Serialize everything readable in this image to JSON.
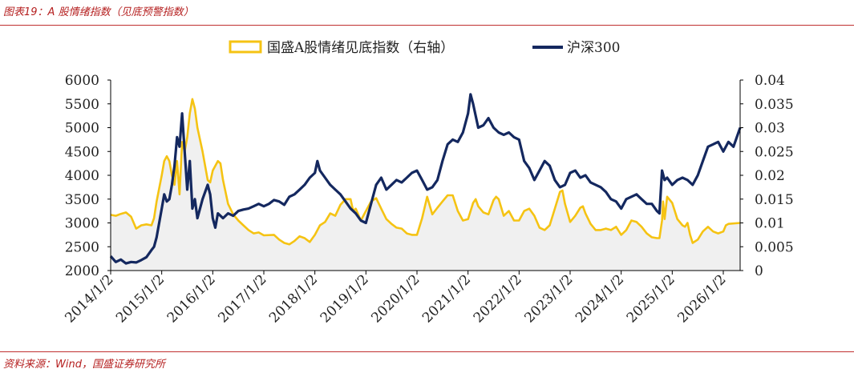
{
  "figure_title": "图表19：A 股情绪指数（见底预警指数）",
  "source_note": "资料来源：Wind，国盛证券研究所",
  "colors": {
    "sentiment": "#f5c313",
    "csi300": "#14285f",
    "fill": "#f0f0f0",
    "accent": "#b52020"
  },
  "chart_data": {
    "type": "line",
    "legend_position": "top",
    "grid": false,
    "x_tick_labels": [
      "2014/1/2",
      "2015/1/2",
      "2016/1/2",
      "2017/1/2",
      "2018/1/2",
      "2019/1/2",
      "2020/1/2",
      "2021/1/2",
      "2022/1/2",
      "2023/1/2",
      "2024/1/2",
      "2025/1/2",
      "2026/1/2"
    ],
    "x_range": [
      2014.0,
      2026.33
    ],
    "y_left": {
      "range": [
        2000,
        6000
      ],
      "ticks": [
        "2000",
        "2500",
        "3000",
        "3500",
        "4000",
        "4500",
        "5000",
        "5500",
        "6000"
      ]
    },
    "y_right": {
      "range": [
        0,
        0.04
      ],
      "ticks": [
        "0",
        "0.005",
        "0.01",
        "0.015",
        "0.02",
        "0.025",
        "0.03",
        "0.035",
        "0.04"
      ]
    },
    "series": [
      {
        "name": "国盛A股情绪见底指数（右轴）",
        "axis": "right",
        "type": "area-line",
        "points": [
          [
            2014.0,
            0.0117
          ],
          [
            2014.1,
            0.0115
          ],
          [
            2014.2,
            0.0119
          ],
          [
            2014.3,
            0.0122
          ],
          [
            2014.4,
            0.0113
          ],
          [
            2014.5,
            0.0088
          ],
          [
            2014.6,
            0.0095
          ],
          [
            2014.7,
            0.0097
          ],
          [
            2014.8,
            0.0095
          ],
          [
            2014.85,
            0.011
          ],
          [
            2014.9,
            0.0145
          ],
          [
            2015.0,
            0.02
          ],
          [
            2015.05,
            0.023
          ],
          [
            2015.1,
            0.024
          ],
          [
            2015.15,
            0.023
          ],
          [
            2015.2,
            0.02
          ],
          [
            2015.25,
            0.018
          ],
          [
            2015.3,
            0.023
          ],
          [
            2015.35,
            0.016
          ],
          [
            2015.4,
            0.027
          ],
          [
            2015.45,
            0.025
          ],
          [
            2015.5,
            0.028
          ],
          [
            2015.55,
            0.033
          ],
          [
            2015.6,
            0.036
          ],
          [
            2015.65,
            0.034
          ],
          [
            2015.7,
            0.03
          ],
          [
            2015.8,
            0.025
          ],
          [
            2015.9,
            0.019
          ],
          [
            2015.95,
            0.0185
          ],
          [
            2016.0,
            0.021
          ],
          [
            2016.1,
            0.023
          ],
          [
            2016.15,
            0.0225
          ],
          [
            2016.2,
            0.019
          ],
          [
            2016.3,
            0.014
          ],
          [
            2016.4,
            0.0118
          ],
          [
            2016.5,
            0.0105
          ],
          [
            2016.6,
            0.0095
          ],
          [
            2016.7,
            0.0085
          ],
          [
            2016.8,
            0.0078
          ],
          [
            2016.9,
            0.008
          ],
          [
            2017.0,
            0.0074
          ],
          [
            2017.2,
            0.0075
          ],
          [
            2017.3,
            0.0065
          ],
          [
            2017.4,
            0.0058
          ],
          [
            2017.5,
            0.0055
          ],
          [
            2017.6,
            0.0062
          ],
          [
            2017.7,
            0.0072
          ],
          [
            2017.8,
            0.0068
          ],
          [
            2017.9,
            0.006
          ],
          [
            2018.0,
            0.0075
          ],
          [
            2018.1,
            0.0095
          ],
          [
            2018.2,
            0.0102
          ],
          [
            2018.3,
            0.012
          ],
          [
            2018.4,
            0.0115
          ],
          [
            2018.5,
            0.0138
          ],
          [
            2018.6,
            0.015
          ],
          [
            2018.7,
            0.015
          ],
          [
            2018.75,
            0.0125
          ],
          [
            2018.8,
            0.013
          ],
          [
            2018.9,
            0.0105
          ],
          [
            2019.0,
            0.0125
          ],
          [
            2019.1,
            0.0145
          ],
          [
            2019.2,
            0.0152
          ],
          [
            2019.3,
            0.013
          ],
          [
            2019.4,
            0.0108
          ],
          [
            2019.5,
            0.0098
          ],
          [
            2019.6,
            0.009
          ],
          [
            2019.7,
            0.0088
          ],
          [
            2019.8,
            0.0078
          ],
          [
            2019.9,
            0.0075
          ],
          [
            2020.0,
            0.0075
          ],
          [
            2020.1,
            0.011
          ],
          [
            2020.2,
            0.0155
          ],
          [
            2020.3,
            0.0118
          ],
          [
            2020.4,
            0.0132
          ],
          [
            2020.5,
            0.0145
          ],
          [
            2020.6,
            0.0158
          ],
          [
            2020.7,
            0.0158
          ],
          [
            2020.8,
            0.0125
          ],
          [
            2020.9,
            0.0105
          ],
          [
            2021.0,
            0.0108
          ],
          [
            2021.1,
            0.0142
          ],
          [
            2021.15,
            0.015
          ],
          [
            2021.2,
            0.0135
          ],
          [
            2021.3,
            0.0122
          ],
          [
            2021.4,
            0.0118
          ],
          [
            2021.5,
            0.0148
          ],
          [
            2021.55,
            0.0155
          ],
          [
            2021.6,
            0.015
          ],
          [
            2021.7,
            0.0115
          ],
          [
            2021.8,
            0.0125
          ],
          [
            2021.9,
            0.0105
          ],
          [
            2022.0,
            0.0105
          ],
          [
            2022.1,
            0.0125
          ],
          [
            2022.2,
            0.013
          ],
          [
            2022.3,
            0.0115
          ],
          [
            2022.4,
            0.009
          ],
          [
            2022.5,
            0.0085
          ],
          [
            2022.6,
            0.0095
          ],
          [
            2022.7,
            0.013
          ],
          [
            2022.8,
            0.0165
          ],
          [
            2022.85,
            0.0168
          ],
          [
            2022.9,
            0.014
          ],
          [
            2023.0,
            0.0102
          ],
          [
            2023.1,
            0.0115
          ],
          [
            2023.2,
            0.0132
          ],
          [
            2023.25,
            0.0135
          ],
          [
            2023.3,
            0.012
          ],
          [
            2023.4,
            0.0098
          ],
          [
            2023.5,
            0.0085
          ],
          [
            2023.6,
            0.0085
          ],
          [
            2023.7,
            0.0088
          ],
          [
            2023.8,
            0.0085
          ],
          [
            2023.9,
            0.0092
          ],
          [
            2024.0,
            0.0075
          ],
          [
            2024.1,
            0.0085
          ],
          [
            2024.2,
            0.0105
          ],
          [
            2024.3,
            0.0102
          ],
          [
            2024.4,
            0.0092
          ],
          [
            2024.5,
            0.0078
          ],
          [
            2024.6,
            0.007
          ],
          [
            2024.7,
            0.0068
          ],
          [
            2024.75,
            0.0068
          ],
          [
            2024.8,
            0.0105
          ],
          [
            2024.82,
            0.0145
          ],
          [
            2024.85,
            0.0108
          ],
          [
            2024.9,
            0.0155
          ],
          [
            2025.0,
            0.0142
          ],
          [
            2025.1,
            0.0108
          ],
          [
            2025.2,
            0.0095
          ],
          [
            2025.25,
            0.0092
          ],
          [
            2025.3,
            0.01
          ],
          [
            2025.35,
            0.0075
          ],
          [
            2025.4,
            0.0058
          ],
          [
            2025.5,
            0.0065
          ],
          [
            2025.6,
            0.0082
          ],
          [
            2025.7,
            0.0092
          ],
          [
            2025.8,
            0.0082
          ],
          [
            2025.9,
            0.0078
          ],
          [
            2026.0,
            0.0082
          ],
          [
            2026.05,
            0.0095
          ],
          [
            2026.1,
            0.0098
          ],
          [
            2026.33,
            0.01
          ]
        ]
      },
      {
        "name": "沪深300",
        "axis": "left",
        "type": "line",
        "points": [
          [
            2014.0,
            2300
          ],
          [
            2014.1,
            2180
          ],
          [
            2014.2,
            2230
          ],
          [
            2014.3,
            2150
          ],
          [
            2014.4,
            2180
          ],
          [
            2014.5,
            2170
          ],
          [
            2014.6,
            2220
          ],
          [
            2014.7,
            2280
          ],
          [
            2014.8,
            2430
          ],
          [
            2014.85,
            2500
          ],
          [
            2014.9,
            2700
          ],
          [
            2015.0,
            3300
          ],
          [
            2015.05,
            3600
          ],
          [
            2015.1,
            3450
          ],
          [
            2015.15,
            3500
          ],
          [
            2015.2,
            3800
          ],
          [
            2015.25,
            4200
          ],
          [
            2015.3,
            4800
          ],
          [
            2015.35,
            4600
          ],
          [
            2015.4,
            5300
          ],
          [
            2015.45,
            4500
          ],
          [
            2015.5,
            3700
          ],
          [
            2015.55,
            4300
          ],
          [
            2015.6,
            3300
          ],
          [
            2015.65,
            3500
          ],
          [
            2015.7,
            3100
          ],
          [
            2015.8,
            3500
          ],
          [
            2015.9,
            3800
          ],
          [
            2015.95,
            3600
          ],
          [
            2016.0,
            3100
          ],
          [
            2016.05,
            2900
          ],
          [
            2016.1,
            3200
          ],
          [
            2016.2,
            3100
          ],
          [
            2016.3,
            3200
          ],
          [
            2016.4,
            3150
          ],
          [
            2016.5,
            3250
          ],
          [
            2016.6,
            3280
          ],
          [
            2016.7,
            3300
          ],
          [
            2016.8,
            3350
          ],
          [
            2016.9,
            3400
          ],
          [
            2017.0,
            3350
          ],
          [
            2017.1,
            3400
          ],
          [
            2017.2,
            3480
          ],
          [
            2017.3,
            3450
          ],
          [
            2017.4,
            3380
          ],
          [
            2017.5,
            3550
          ],
          [
            2017.6,
            3600
          ],
          [
            2017.7,
            3700
          ],
          [
            2017.8,
            3800
          ],
          [
            2017.9,
            3950
          ],
          [
            2018.0,
            4050
          ],
          [
            2018.05,
            4300
          ],
          [
            2018.1,
            4100
          ],
          [
            2018.2,
            3950
          ],
          [
            2018.3,
            3800
          ],
          [
            2018.4,
            3700
          ],
          [
            2018.5,
            3600
          ],
          [
            2018.6,
            3450
          ],
          [
            2018.7,
            3300
          ],
          [
            2018.8,
            3200
          ],
          [
            2018.9,
            3050
          ],
          [
            2019.0,
            3000
          ],
          [
            2019.1,
            3400
          ],
          [
            2019.2,
            3800
          ],
          [
            2019.3,
            3950
          ],
          [
            2019.4,
            3700
          ],
          [
            2019.5,
            3800
          ],
          [
            2019.6,
            3900
          ],
          [
            2019.7,
            3850
          ],
          [
            2019.8,
            3950
          ],
          [
            2019.9,
            4050
          ],
          [
            2020.0,
            4100
          ],
          [
            2020.1,
            3900
          ],
          [
            2020.2,
            3700
          ],
          [
            2020.3,
            3750
          ],
          [
            2020.4,
            3900
          ],
          [
            2020.5,
            4300
          ],
          [
            2020.6,
            4650
          ],
          [
            2020.7,
            4750
          ],
          [
            2020.8,
            4700
          ],
          [
            2020.9,
            4900
          ],
          [
            2021.0,
            5300
          ],
          [
            2021.05,
            5700
          ],
          [
            2021.1,
            5500
          ],
          [
            2021.2,
            5000
          ],
          [
            2021.3,
            5050
          ],
          [
            2021.4,
            5200
          ],
          [
            2021.5,
            5000
          ],
          [
            2021.6,
            4900
          ],
          [
            2021.7,
            4850
          ],
          [
            2021.8,
            4900
          ],
          [
            2021.9,
            4800
          ],
          [
            2022.0,
            4750
          ],
          [
            2022.1,
            4300
          ],
          [
            2022.2,
            4150
          ],
          [
            2022.3,
            3900
          ],
          [
            2022.4,
            4100
          ],
          [
            2022.5,
            4300
          ],
          [
            2022.6,
            4200
          ],
          [
            2022.7,
            3900
          ],
          [
            2022.8,
            3750
          ],
          [
            2022.9,
            3800
          ],
          [
            2023.0,
            4050
          ],
          [
            2023.1,
            4100
          ],
          [
            2023.2,
            3950
          ],
          [
            2023.3,
            4000
          ],
          [
            2023.4,
            3850
          ],
          [
            2023.5,
            3800
          ],
          [
            2023.6,
            3750
          ],
          [
            2023.7,
            3650
          ],
          [
            2023.8,
            3500
          ],
          [
            2023.9,
            3450
          ],
          [
            2024.0,
            3300
          ],
          [
            2024.1,
            3500
          ],
          [
            2024.2,
            3550
          ],
          [
            2024.3,
            3600
          ],
          [
            2024.4,
            3500
          ],
          [
            2024.5,
            3400
          ],
          [
            2024.6,
            3400
          ],
          [
            2024.7,
            3250
          ],
          [
            2024.75,
            3200
          ],
          [
            2024.8,
            4100
          ],
          [
            2024.85,
            3900
          ],
          [
            2024.9,
            3950
          ],
          [
            2025.0,
            3800
          ],
          [
            2025.1,
            3900
          ],
          [
            2025.2,
            3950
          ],
          [
            2025.3,
            3900
          ],
          [
            2025.4,
            3800
          ],
          [
            2025.5,
            4000
          ],
          [
            2025.6,
            4300
          ],
          [
            2025.7,
            4600
          ],
          [
            2025.8,
            4650
          ],
          [
            2025.9,
            4700
          ],
          [
            2026.0,
            4500
          ],
          [
            2026.1,
            4700
          ],
          [
            2026.2,
            4600
          ],
          [
            2026.33,
            5000
          ]
        ]
      }
    ]
  }
}
